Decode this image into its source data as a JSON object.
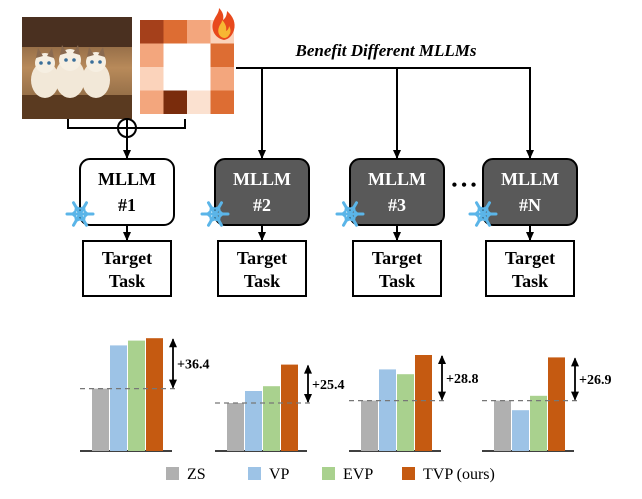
{
  "header": {
    "benefit_label": "Benefit Different MLLMs"
  },
  "colors": {
    "zs": "#b0b0b0",
    "vp": "#9dc3e6",
    "evp": "#a9d18e",
    "tvp": "#c55a11",
    "dark_box": "#595959",
    "prompt_cells": [
      "#a5401b",
      "#dd6d33",
      "#f3a67d",
      "#fbd3bb",
      "#fbe1d0",
      "#7a2c0c"
    ]
  },
  "icons": [
    "cat-photo-icon",
    "visual-prompt-icon",
    "fire-icon",
    "plus-circle-icon",
    "snowflake-icon"
  ],
  "models": [
    {
      "line1": "MLLM",
      "line2": "#1",
      "style": "light"
    },
    {
      "line1": "MLLM",
      "line2": "#2",
      "style": "dark"
    },
    {
      "line1": "MLLM",
      "line2": "#3",
      "style": "dark"
    },
    {
      "line1": "MLLM",
      "line2": "#N",
      "style": "dark"
    }
  ],
  "ellipsis": "• • •",
  "tasks": [
    {
      "line1": "Target",
      "line2": "Task"
    },
    {
      "line1": "Target",
      "line2": "Task"
    },
    {
      "line1": "Target",
      "line2": "Task"
    },
    {
      "line1": "Target",
      "line2": "Task"
    }
  ],
  "chart_data": {
    "type": "bar",
    "series_names": [
      "ZS",
      "VP",
      "EVP",
      "TVP (ours)"
    ],
    "groups": [
      {
        "values": [
          52,
          88,
          92,
          94
        ],
        "gain": "+36.4"
      },
      {
        "values": [
          40,
          50,
          54,
          72
        ],
        "gain": "+25.4"
      },
      {
        "values": [
          42,
          68,
          64,
          80
        ],
        "gain": "+28.8"
      },
      {
        "values": [
          42,
          34,
          46,
          78
        ],
        "gain": "+26.9"
      }
    ]
  },
  "legend": [
    {
      "label": "ZS",
      "color": "#b0b0b0"
    },
    {
      "label": "VP",
      "color": "#9dc3e6"
    },
    {
      "label": "EVP",
      "color": "#a9d18e"
    },
    {
      "label": "TVP (ours)",
      "color": "#c55a11"
    }
  ]
}
